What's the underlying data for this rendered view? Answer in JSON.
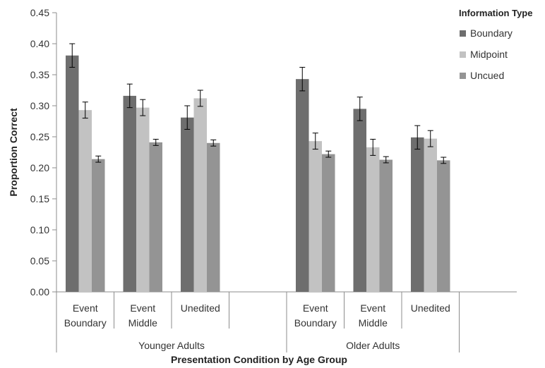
{
  "chart_data": {
    "type": "bar",
    "xlabel": "Presentation Condition by Age Group",
    "ylabel": "Proportion Correct",
    "ylim": [
      0,
      0.45
    ],
    "yticks": [
      "0.00",
      "0.05",
      "0.10",
      "0.15",
      "0.20",
      "0.25",
      "0.30",
      "0.35",
      "0.40",
      "0.45"
    ],
    "grid": false,
    "legend": {
      "title": "Information Type",
      "placement": "top-right"
    },
    "groups": [
      {
        "name": "Younger Adults",
        "categories": [
          {
            "lines": [
              "Event",
              "Boundary"
            ]
          },
          {
            "lines": [
              "Event",
              "Middle"
            ]
          },
          {
            "lines": [
              "Unedited"
            ]
          }
        ]
      },
      {
        "name": "Older Adults",
        "categories": [
          {
            "lines": [
              "Event",
              "Boundary"
            ]
          },
          {
            "lines": [
              "Event",
              "Middle"
            ]
          },
          {
            "lines": [
              "Unedited"
            ]
          }
        ]
      }
    ],
    "series": [
      {
        "name": "Boundary",
        "color": "#6e6e6e",
        "values": [
          0.381,
          0.316,
          0.281,
          0.343,
          0.295,
          0.249
        ],
        "errors": [
          0.019,
          0.019,
          0.019,
          0.019,
          0.019,
          0.019
        ]
      },
      {
        "name": "Midpoint",
        "color": "#c2c2c2",
        "values": [
          0.293,
          0.297,
          0.312,
          0.243,
          0.233,
          0.247
        ],
        "errors": [
          0.013,
          0.013,
          0.013,
          0.013,
          0.013,
          0.013
        ]
      },
      {
        "name": "Uncued",
        "color": "#949494",
        "values": [
          0.214,
          0.241,
          0.24,
          0.222,
          0.213,
          0.212
        ],
        "errors": [
          0.005,
          0.005,
          0.005,
          0.005,
          0.005,
          0.005
        ]
      }
    ]
  }
}
